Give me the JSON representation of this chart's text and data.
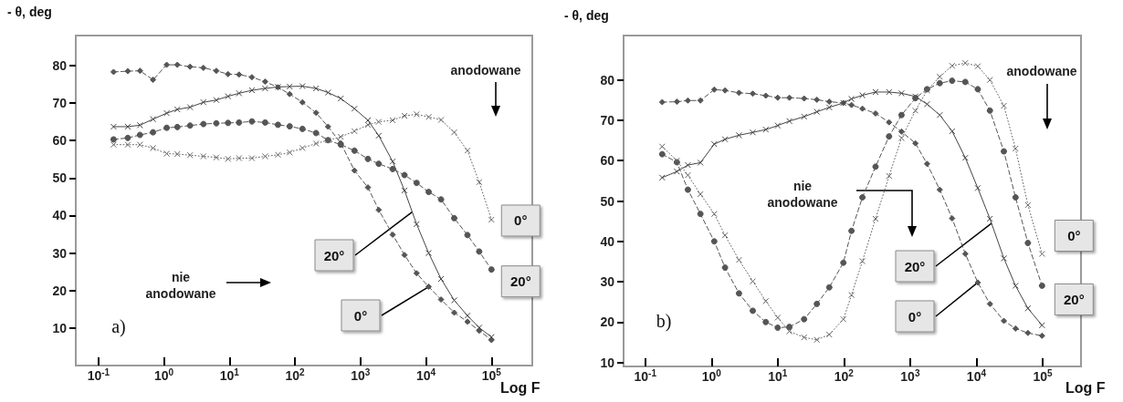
{
  "chart_data": [
    {
      "type": "line",
      "ylabel": "- θ, deg",
      "xlabel": "Log F",
      "log": "x",
      "xlim": [
        0.045,
        420000
      ],
      "ylim": [
        0,
        88
      ],
      "xticks": [
        {
          "value": 0.1,
          "label": "10$^{-1}$"
        },
        {
          "value": 1,
          "label": "10$^{0}$"
        },
        {
          "value": 10,
          "label": "10$^{1}$"
        },
        {
          "value": 100,
          "label": "10$^{2}$"
        },
        {
          "value": 1000,
          "label": "10$^{3}$"
        },
        {
          "value": 10000,
          "label": "10$^{4}$"
        },
        {
          "value": 100000,
          "label": "10$^{5}$"
        }
      ],
      "yticks": [
        10,
        20,
        30,
        40,
        50,
        60,
        70,
        80
      ],
      "x": [
        0.17,
        0.28,
        0.43,
        0.68,
        1.1,
        1.6,
        2.5,
        4,
        6.3,
        9.5,
        14,
        22,
        35,
        55,
        83,
        130,
        210,
        320,
        500,
        810,
        1300,
        1900,
        3100,
        4700,
        7200,
        11000,
        17000,
        27000,
        43000,
        65000,
        100000
      ],
      "series": [
        {
          "color": "#555555",
          "marker": "diamond",
          "line_style": "dashed",
          "values": [
            78.3,
            78.5,
            78.6,
            76.2,
            80.2,
            80.2,
            79.7,
            79.4,
            78.6,
            77.7,
            77.6,
            76.9,
            75.7,
            74.2,
            72.4,
            70.2,
            67.4,
            63.7,
            59.3,
            52,
            47.5,
            41.5,
            34.9,
            29.5,
            24.6,
            21.0,
            17.6,
            14.1,
            11.7,
            9.3,
            6.8
          ]
        },
        {
          "color": "#444444",
          "marker": "cross",
          "line_style": "solid",
          "values": [
            63.7,
            63.7,
            64.1,
            65.7,
            67.3,
            68.3,
            68.9,
            70.2,
            70.8,
            71.8,
            72.6,
            73.4,
            73.9,
            74.3,
            74.4,
            74.5,
            73.9,
            72.8,
            71.2,
            68.5,
            65.4,
            61.3,
            54.4,
            46.7,
            37.7,
            30.0,
            23.1,
            17.4,
            13.3,
            10.1,
            7.6
          ]
        },
        {
          "color": "#555555",
          "marker": "circle",
          "line_style": "dashed",
          "values": [
            60.3,
            60.7,
            61.5,
            62.2,
            63.4,
            63.6,
            64.0,
            64.4,
            64.6,
            64.7,
            64.8,
            65.1,
            64.8,
            64.2,
            63.8,
            63.1,
            62.0,
            60.1,
            58.9,
            57.3,
            55.1,
            53.8,
            52.4,
            50.8,
            48.7,
            46.3,
            44.3,
            39.3,
            34.8,
            30.4,
            25.6
          ]
        },
        {
          "color": "#666666",
          "marker": "cross",
          "line_style": "dotted",
          "values": [
            58.9,
            58.9,
            58.9,
            58,
            56.5,
            56.4,
            56.1,
            55.8,
            55.5,
            55.1,
            55.3,
            55.3,
            55.8,
            56.2,
            56.8,
            58.0,
            59.2,
            60.1,
            61.0,
            62.5,
            64.2,
            65.0,
            65.4,
            66.6,
            67.0,
            66.3,
            65.5,
            62.2,
            57.3,
            48.9,
            38.9
          ]
        }
      ],
      "annotations": [
        "anodowane",
        "nie anodowane",
        "a)",
        {
          "text": "20°",
          "x": 6200,
          "y": 41
        },
        {
          "text": "0°",
          "x": 11000,
          "y": 21
        },
        {
          "text": "0°",
          "x": 100000,
          "y": 38.9
        },
        {
          "text": "20°",
          "x": 100000,
          "y": 25.6
        }
      ]
    },
    {
      "type": "line",
      "ylabel": "- θ, deg",
      "xlabel": "Log F",
      "log": "x",
      "xlim": [
        0.047,
        380000
      ],
      "ylim": [
        9,
        91
      ],
      "xticks": [
        {
          "value": 0.1,
          "label": "10$^{-1}$"
        },
        {
          "value": 1,
          "label": "10$^{0}$"
        },
        {
          "value": 10,
          "label": "10$^{1}$"
        },
        {
          "value": 100,
          "label": "10$^{2}$"
        },
        {
          "value": 1000,
          "label": "10$^{3}$"
        },
        {
          "value": 10000,
          "label": "10$^{4}$"
        },
        {
          "value": 100000,
          "label": "10$^{5}$"
        }
      ],
      "yticks": [
        10,
        20,
        30,
        40,
        50,
        60,
        70,
        80
      ],
      "x": [
        0.18,
        0.3,
        0.44,
        0.68,
        1.1,
        1.6,
        2.6,
        4.2,
        6.6,
        10,
        15,
        25,
        39,
        60,
        98,
        130,
        190,
        300,
        480,
        740,
        1200,
        1800,
        2800,
        4300,
        6800,
        10500,
        16000,
        26000,
        39000,
        60000,
        98000
      ],
      "series": [
        {
          "color": "#555555",
          "marker": "diamond",
          "line_style": "dashed",
          "values": [
            74.5,
            74.6,
            74.9,
            74.9,
            77.6,
            77.4,
            76.8,
            76.6,
            76.1,
            75.6,
            75.6,
            75.4,
            75.1,
            74.6,
            74.3,
            73.8,
            72.9,
            71.7,
            69.5,
            67.2,
            64.3,
            59.2,
            52.8,
            45.7,
            36.9,
            29.8,
            24.5,
            20.3,
            18.4,
            17.3,
            16.6
          ]
        },
        {
          "color": "#444444",
          "marker": "cross",
          "line_style": "solid",
          "values": [
            55.8,
            57.3,
            58.9,
            59.5,
            64.1,
            65.3,
            66.3,
            67.0,
            67.7,
            68.7,
            69.8,
            70.9,
            72.1,
            73.2,
            74.3,
            75.3,
            76.2,
            77.0,
            77.0,
            76.7,
            75.9,
            74.0,
            71.3,
            67.3,
            60.7,
            53.2,
            45.6,
            35.8,
            29.0,
            23.4,
            19.2
          ]
        },
        {
          "color": "#555555",
          "marker": "circle",
          "line_style": "dashed",
          "values": [
            61.6,
            59.6,
            52.8,
            46.8,
            40.0,
            33.5,
            27.1,
            22.8,
            20.0,
            18.6,
            18.8,
            20.7,
            24.5,
            28.6,
            34.7,
            42.6,
            50.9,
            58.5,
            66.0,
            71.3,
            75.5,
            77.7,
            79.2,
            79.8,
            79.5,
            77.7,
            72.4,
            62.3,
            50.9,
            39.6,
            29.0
          ]
        },
        {
          "color": "#666666",
          "marker": "cross",
          "line_style": "dotted",
          "values": [
            63.5,
            60.0,
            56.4,
            51.7,
            46.8,
            41.5,
            35.4,
            30.1,
            25.2,
            21.1,
            17.7,
            16.2,
            15.6,
            16.9,
            20.7,
            26.7,
            35.1,
            45.6,
            56.2,
            65.6,
            72.4,
            77.4,
            80.8,
            83.5,
            84.2,
            83.4,
            80.0,
            73.6,
            63.0,
            49.0,
            36.9
          ]
        }
      ],
      "annotations": [
        "anodowane",
        "nie anodowane",
        "b)",
        {
          "text": "20°",
          "x": 17000,
          "y": 44.5
        },
        {
          "text": "0°",
          "x": 10500,
          "y": 29.8
        },
        {
          "text": "0°",
          "x": 98000,
          "y": 36.9
        },
        {
          "text": "20°",
          "x": 98000,
          "y": 29.0
        }
      ]
    }
  ]
}
